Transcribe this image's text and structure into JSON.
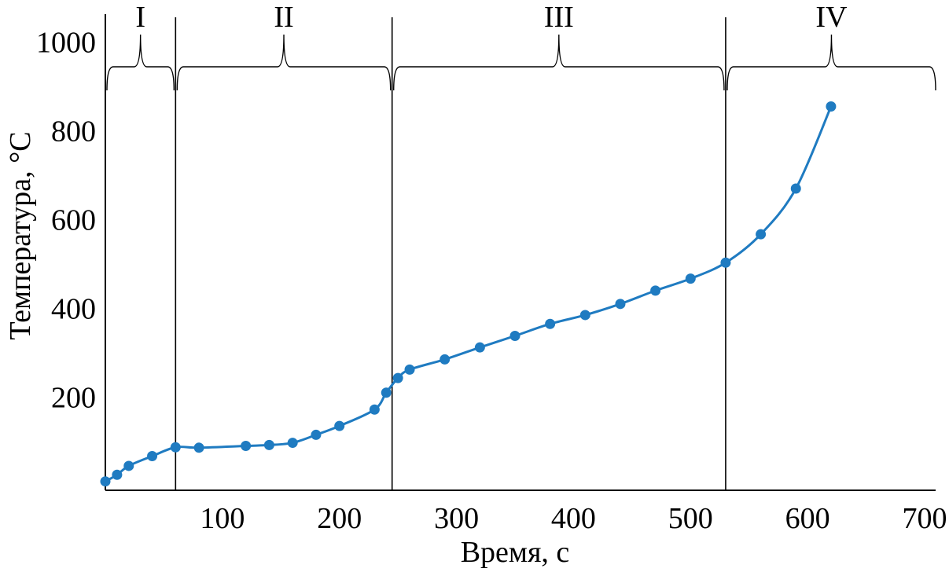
{
  "chart_data": {
    "type": "line",
    "xlabel": "Время, с",
    "ylabel": "Температура, °C",
    "xlim": [
      0,
      700
    ],
    "ylim": [
      -10,
      1010
    ],
    "xticks": [
      100,
      200,
      300,
      400,
      500,
      600,
      700
    ],
    "yticks": [
      200,
      400,
      600,
      800,
      1000
    ],
    "grid": false,
    "series_color": "#1f7bc1",
    "series": [
      {
        "x": [
          0,
          10,
          20,
          40,
          60,
          80,
          120,
          140,
          160,
          180,
          200,
          230,
          240,
          250,
          260,
          290,
          320,
          350,
          380,
          410,
          440,
          470,
          500,
          530,
          560,
          590,
          620
        ],
        "y": [
          10,
          25,
          45,
          67,
          87,
          86,
          90,
          92,
          97,
          115,
          135,
          172,
          210,
          243,
          262,
          285,
          312,
          338,
          365,
          385,
          410,
          440,
          467,
          503,
          567,
          670,
          855
        ]
      }
    ],
    "regions": [
      {
        "label": "I",
        "x_start": 0,
        "x_end": 60
      },
      {
        "label": "II",
        "x_start": 60,
        "x_end": 245
      },
      {
        "label": "III",
        "x_start": 245,
        "x_end": 530
      },
      {
        "label": "IV",
        "x_start": 530,
        "x_end": 700
      }
    ]
  }
}
